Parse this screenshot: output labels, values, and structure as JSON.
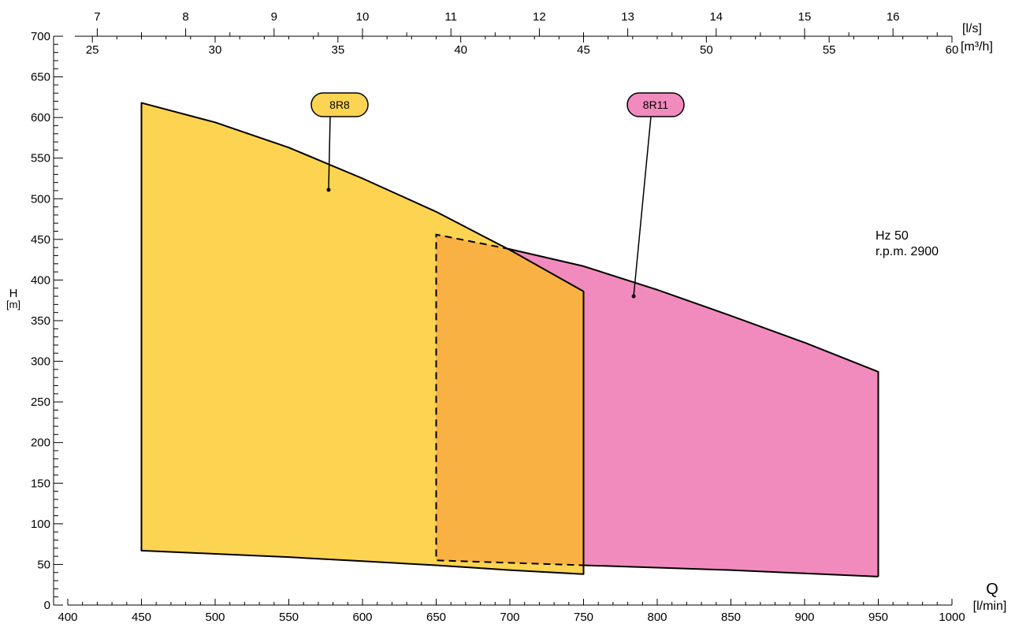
{
  "chart_data": {
    "type": "area",
    "xlabel": "Q",
    "x_unit": "[l/min]",
    "ylabel": "H",
    "y_unit": "[m]",
    "xlim": [
      400,
      1000
    ],
    "ylim": [
      0,
      700
    ],
    "x_ticks": [
      400,
      450,
      500,
      550,
      600,
      650,
      700,
      750,
      800,
      850,
      900,
      950,
      1000
    ],
    "y_ticks": [
      0,
      50,
      100,
      150,
      200,
      250,
      300,
      350,
      400,
      450,
      500,
      550,
      600,
      650,
      700
    ],
    "secondary_axes": {
      "ls": {
        "unit": "[l/s]",
        "ticks": [
          7,
          8,
          9,
          10,
          11,
          12,
          13,
          14,
          15,
          16
        ]
      },
      "m3h": {
        "unit": "[m³/h]",
        "ticks": [
          25,
          30,
          35,
          40,
          45,
          50,
          55,
          60
        ]
      }
    },
    "info": [
      "Hz 50",
      "r.p.m. 2900"
    ],
    "series": [
      {
        "name": "8R8",
        "color": "#fdd452",
        "upper": [
          [
            450,
            618
          ],
          [
            500,
            594
          ],
          [
            550,
            563
          ],
          [
            600,
            525
          ],
          [
            650,
            484
          ],
          [
            700,
            437
          ],
          [
            750,
            386
          ]
        ],
        "lower": [
          [
            450,
            67
          ],
          [
            500,
            63
          ],
          [
            550,
            59
          ],
          [
            600,
            54
          ],
          [
            650,
            49
          ],
          [
            700,
            43
          ],
          [
            750,
            38
          ]
        ]
      },
      {
        "name": "8R11",
        "color": "#f28bbd",
        "upper": [
          [
            650,
            456
          ],
          [
            700,
            438
          ],
          [
            750,
            417
          ],
          [
            800,
            388
          ],
          [
            850,
            356
          ],
          [
            900,
            323
          ],
          [
            950,
            287
          ]
        ],
        "lower": [
          [
            650,
            55
          ],
          [
            700,
            52
          ],
          [
            750,
            49
          ],
          [
            800,
            46
          ],
          [
            850,
            43
          ],
          [
            900,
            39
          ],
          [
            950,
            35
          ]
        ]
      }
    ],
    "overlap_color": "#f8b142",
    "grid": false,
    "legend": "callout tags"
  }
}
